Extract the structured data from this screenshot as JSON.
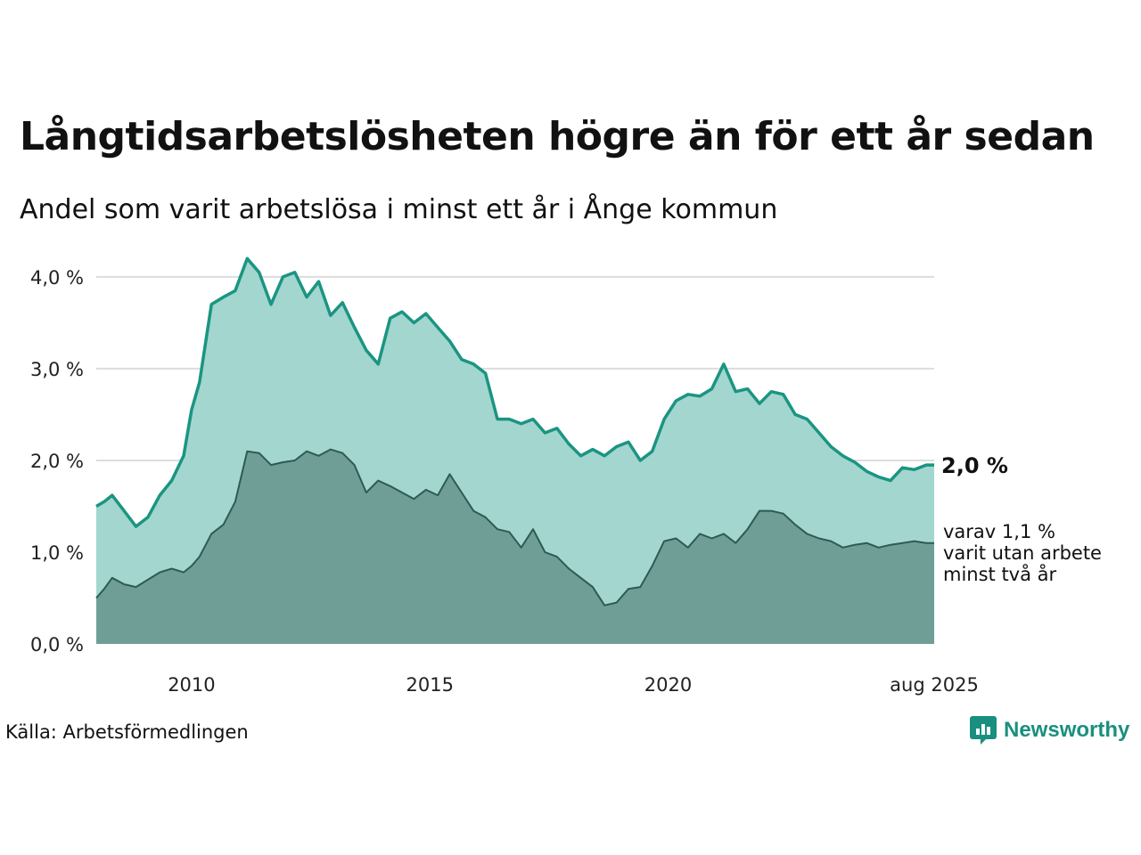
{
  "title": "Långtidsarbetslösheten högre än för ett år sedan",
  "subtitle": "Andel som varit arbetslösa i minst ett år i Ånge kommun",
  "source": "Källa: Arbetsförmedlingen",
  "brand": {
    "name": "Newsworthy",
    "icon": "newsworthy-logo-icon"
  },
  "colors": {
    "main_line": "#1a9582",
    "main_fill": "#a3d6cf",
    "sub_line": "#2f5a52",
    "sub_fill": "#6f9e97",
    "grid": "#dddddd"
  },
  "chart_data": {
    "type": "area",
    "x_ticks": [
      "2010",
      "2015",
      "2020",
      "aug 2025"
    ],
    "y_ticks": [
      "0,0 %",
      "1,0 %",
      "2,0 %",
      "3,0 %",
      "4,0 %"
    ],
    "ylim": [
      0,
      4.3
    ],
    "xlim": [
      "2008-01",
      "2025-08"
    ],
    "grid": true,
    "end_labels": {
      "total": "2,0 %",
      "sub_lines": [
        "varav 1,1 %",
        "varit utan arbete",
        "minst två år"
      ]
    },
    "series": [
      {
        "key": "total",
        "x": [
          "2008-01",
          "2008-03",
          "2008-05",
          "2008-08",
          "2008-11",
          "2009-02",
          "2009-05",
          "2009-08",
          "2009-11",
          "2010-01",
          "2010-03",
          "2010-06",
          "2010-09",
          "2010-12",
          "2011-03",
          "2011-06",
          "2011-09",
          "2011-12",
          "2012-03",
          "2012-06",
          "2012-09",
          "2012-12",
          "2013-03",
          "2013-06",
          "2013-09",
          "2013-12",
          "2014-03",
          "2014-06",
          "2014-09",
          "2014-12",
          "2015-03",
          "2015-06",
          "2015-09",
          "2015-12",
          "2016-03",
          "2016-06",
          "2016-09",
          "2016-12",
          "2017-03",
          "2017-06",
          "2017-09",
          "2017-12",
          "2018-03",
          "2018-06",
          "2018-09",
          "2018-12",
          "2019-03",
          "2019-06",
          "2019-09",
          "2019-12",
          "2020-03",
          "2020-06",
          "2020-09",
          "2020-12",
          "2021-03",
          "2021-06",
          "2021-09",
          "2021-12",
          "2022-03",
          "2022-06",
          "2022-09",
          "2022-12",
          "2023-03",
          "2023-06",
          "2023-09",
          "2023-12",
          "2024-03",
          "2024-06",
          "2024-09",
          "2024-12",
          "2025-03",
          "2025-06",
          "2025-08"
        ],
        "values": [
          1.5,
          1.55,
          1.62,
          1.45,
          1.28,
          1.38,
          1.62,
          1.78,
          2.05,
          2.55,
          2.85,
          3.7,
          3.78,
          3.85,
          4.2,
          4.05,
          3.7,
          4.0,
          4.05,
          3.78,
          3.95,
          3.58,
          3.72,
          3.45,
          3.2,
          3.05,
          3.55,
          3.62,
          3.5,
          3.6,
          3.45,
          3.3,
          3.1,
          3.05,
          2.95,
          2.45,
          2.45,
          2.4,
          2.45,
          2.3,
          2.35,
          2.18,
          2.05,
          2.12,
          2.05,
          2.15,
          2.2,
          2.0,
          2.1,
          2.45,
          2.65,
          2.72,
          2.7,
          2.78,
          3.05,
          2.75,
          2.78,
          2.62,
          2.75,
          2.72,
          2.5,
          2.45,
          2.3,
          2.15,
          2.05,
          1.98,
          1.88,
          1.82,
          1.78,
          1.92,
          1.9,
          1.95,
          1.95
        ]
      },
      {
        "key": "varav",
        "x": [
          "2008-01",
          "2008-03",
          "2008-05",
          "2008-08",
          "2008-11",
          "2009-02",
          "2009-05",
          "2009-08",
          "2009-11",
          "2010-01",
          "2010-03",
          "2010-06",
          "2010-09",
          "2010-12",
          "2011-03",
          "2011-06",
          "2011-09",
          "2011-12",
          "2012-03",
          "2012-06",
          "2012-09",
          "2012-12",
          "2013-03",
          "2013-06",
          "2013-09",
          "2013-12",
          "2014-03",
          "2014-06",
          "2014-09",
          "2014-12",
          "2015-03",
          "2015-06",
          "2015-09",
          "2015-12",
          "2016-03",
          "2016-06",
          "2016-09",
          "2016-12",
          "2017-03",
          "2017-06",
          "2017-09",
          "2017-12",
          "2018-03",
          "2018-06",
          "2018-09",
          "2018-12",
          "2019-03",
          "2019-06",
          "2019-09",
          "2019-12",
          "2020-03",
          "2020-06",
          "2020-09",
          "2020-12",
          "2021-03",
          "2021-06",
          "2021-09",
          "2021-12",
          "2022-03",
          "2022-06",
          "2022-09",
          "2022-12",
          "2023-03",
          "2023-06",
          "2023-09",
          "2023-12",
          "2024-03",
          "2024-06",
          "2024-09",
          "2024-12",
          "2025-03",
          "2025-06",
          "2025-08"
        ],
        "values": [
          0.5,
          0.6,
          0.72,
          0.65,
          0.62,
          0.7,
          0.78,
          0.82,
          0.78,
          0.85,
          0.95,
          1.2,
          1.3,
          1.55,
          2.1,
          2.08,
          1.95,
          1.98,
          2.0,
          2.1,
          2.05,
          2.12,
          2.08,
          1.95,
          1.65,
          1.78,
          1.72,
          1.65,
          1.58,
          1.68,
          1.62,
          1.85,
          1.65,
          1.45,
          1.38,
          1.25,
          1.22,
          1.05,
          1.25,
          1.0,
          0.95,
          0.82,
          0.72,
          0.62,
          0.42,
          0.45,
          0.6,
          0.62,
          0.85,
          1.12,
          1.15,
          1.05,
          1.2,
          1.15,
          1.2,
          1.1,
          1.25,
          1.45,
          1.45,
          1.42,
          1.3,
          1.2,
          1.15,
          1.12,
          1.05,
          1.08,
          1.1,
          1.05,
          1.08,
          1.1,
          1.12,
          1.1,
          1.1
        ]
      }
    ]
  }
}
